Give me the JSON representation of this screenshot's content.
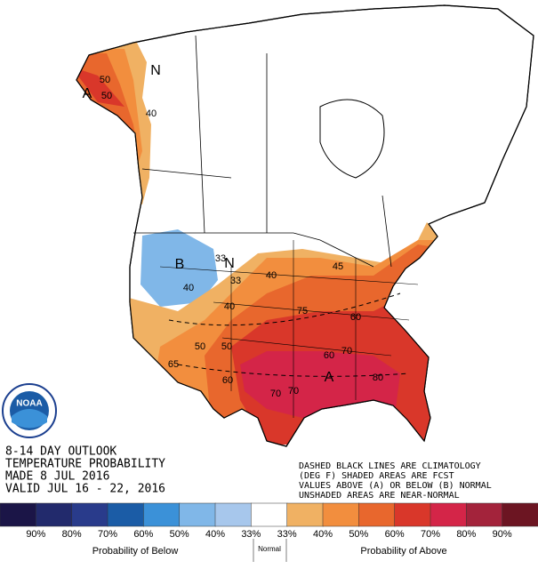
{
  "title_block": {
    "lines": [
      "8-14 DAY OUTLOOK",
      "TEMPERATURE PROBABILITY",
      "MADE  8 JUL 2016",
      "VALID  JUL 16 - 22, 2016"
    ]
  },
  "note": {
    "lines": [
      "DASHED BLACK LINES ARE CLIMATOLOGY",
      "(DEG F) SHADED AREAS ARE FCST",
      "VALUES ABOVE (A) OR BELOW (B) NORMAL",
      "UNSHADED AREAS ARE NEAR-NORMAL"
    ]
  },
  "logo": {
    "text": "NOAA"
  },
  "map_labels": [
    "N",
    "50",
    "A",
    "50",
    "40",
    "B",
    "N",
    "33",
    "33",
    "40",
    "40",
    "50",
    "60",
    "70",
    "A",
    "80",
    "70",
    "60",
    "50",
    "40",
    "60",
    "70",
    "75",
    "65",
    "45"
  ],
  "legend": {
    "colors": [
      "#1b1547",
      "#222a6c",
      "#293b8b",
      "#1b5ca6",
      "#3b91d8",
      "#80b7e8",
      "#a7c7ec",
      "#ffffff",
      "#f0b163",
      "#f28e3e",
      "#e8672d",
      "#d9372a",
      "#d42548",
      "#a3233b",
      "#6c1522"
    ],
    "tick_labels": [
      "90%",
      "80%",
      "70%",
      "60%",
      "50%",
      "40%",
      "33%",
      "33%",
      "40%",
      "50%",
      "60%",
      "70%",
      "80%",
      "90%"
    ],
    "below_label": "Probability of Below",
    "normal_label": "Normal",
    "above_label": "Probability of Above"
  }
}
